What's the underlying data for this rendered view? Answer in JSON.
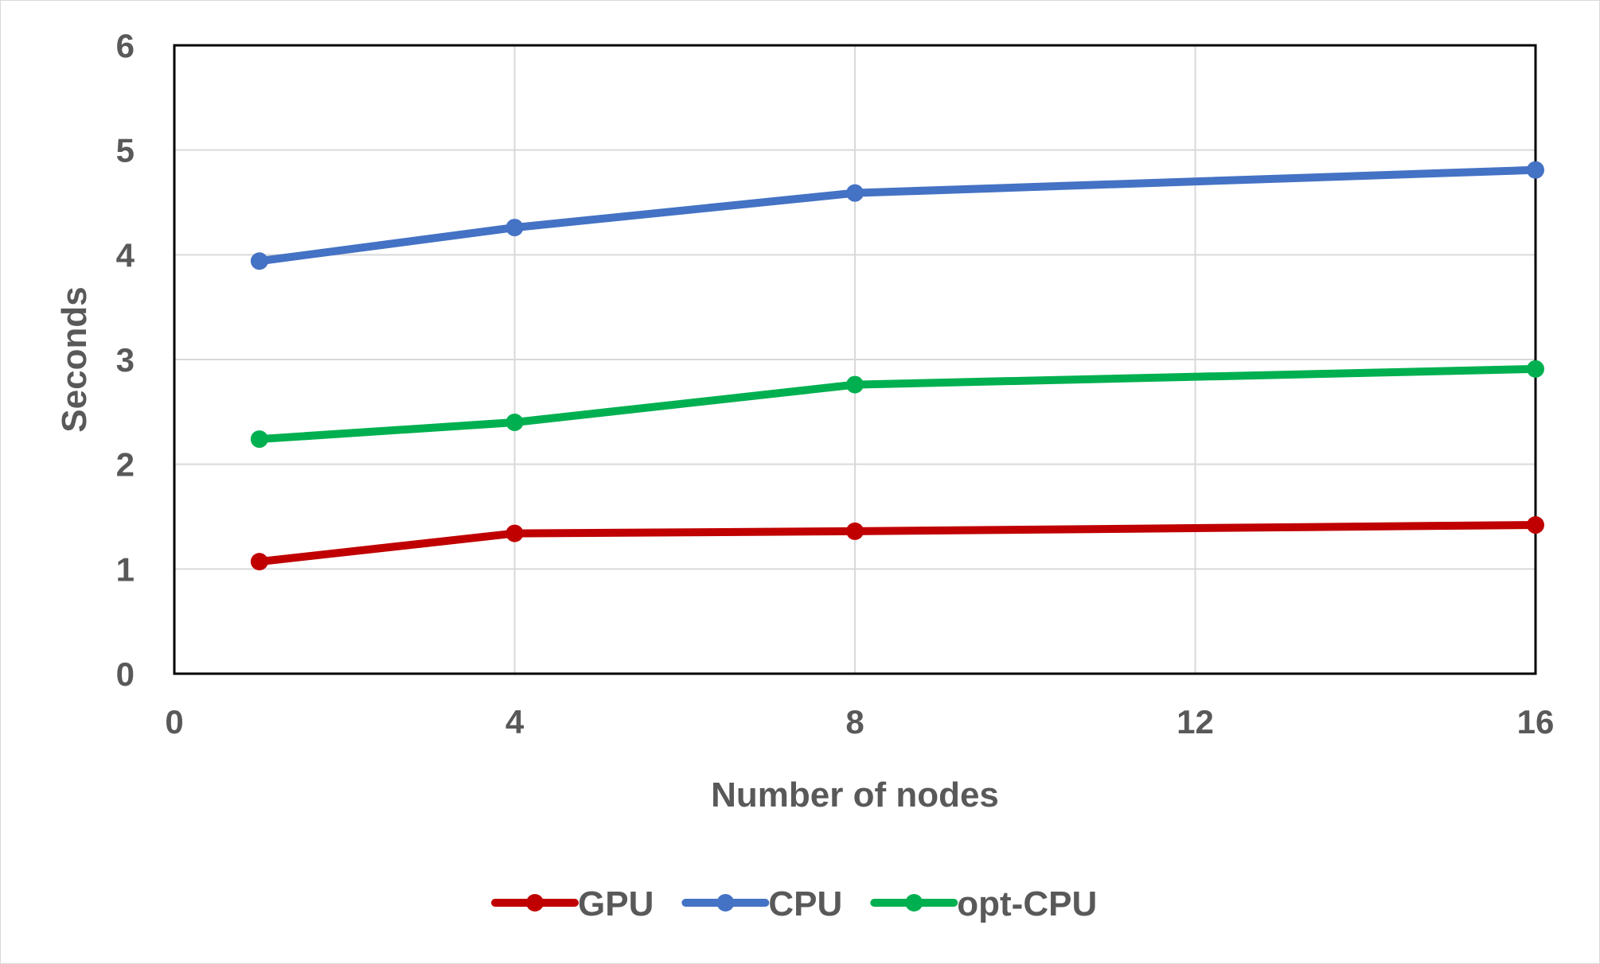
{
  "chart_data": {
    "type": "line",
    "title": "",
    "xlabel": "Number of nodes",
    "ylabel": "Seconds",
    "xlim": [
      0,
      16
    ],
    "ylim": [
      0,
      6
    ],
    "x_ticks": [
      "0",
      "4",
      "8",
      "12",
      "16"
    ],
    "y_ticks": [
      "0",
      "1",
      "2",
      "3",
      "4",
      "5",
      "6"
    ],
    "x": [
      1,
      4,
      8,
      16
    ],
    "grid": true,
    "legend_position": "bottom",
    "series": [
      {
        "name": "GPU",
        "color": "#c00000",
        "values": [
          1.07,
          1.34,
          1.36,
          1.42
        ]
      },
      {
        "name": "CPU",
        "color": "#4472c4",
        "values": [
          3.94,
          4.26,
          4.59,
          4.81
        ]
      },
      {
        "name": "opt-CPU",
        "color": "#00b050",
        "values": [
          2.24,
          2.4,
          2.76,
          2.91
        ]
      }
    ]
  }
}
